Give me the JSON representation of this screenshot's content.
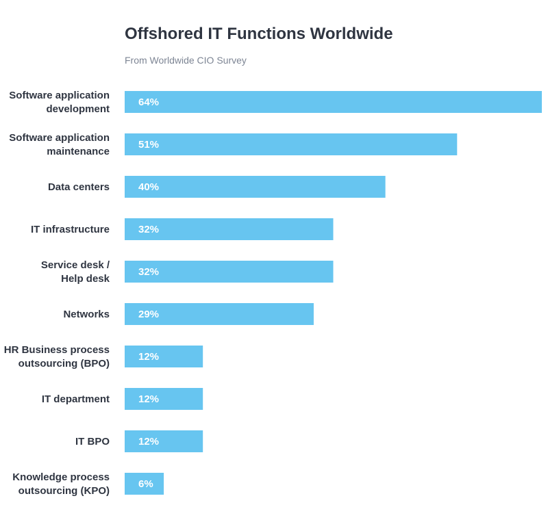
{
  "title": "Offshored IT Functions Worldwide",
  "subtitle": "From Worldwide CIO Survey",
  "chart_data": {
    "type": "bar",
    "orientation": "horizontal",
    "title": "Offshored IT Functions Worldwide",
    "subtitle": "From Worldwide CIO Survey",
    "categories": [
      [
        "Software application",
        "development"
      ],
      [
        "Software application",
        "maintenance"
      ],
      [
        "Data centers"
      ],
      [
        "IT infrastructure"
      ],
      [
        "Service desk /",
        "Help desk"
      ],
      [
        "Networks"
      ],
      [
        "HR Business process",
        "outsourcing (BPO)"
      ],
      [
        "IT department"
      ],
      [
        "IT BPO"
      ],
      [
        "Knowledge process",
        "outsourcing (KPO)"
      ]
    ],
    "values": [
      64,
      51,
      40,
      32,
      32,
      29,
      12,
      12,
      12,
      6
    ],
    "value_labels": [
      "64%",
      "51%",
      "40%",
      "32%",
      "32%",
      "29%",
      "12%",
      "12%",
      "12%",
      "6%"
    ],
    "unit": "%",
    "bar_color": "#67c5f0",
    "grid": false,
    "legend": "none"
  }
}
